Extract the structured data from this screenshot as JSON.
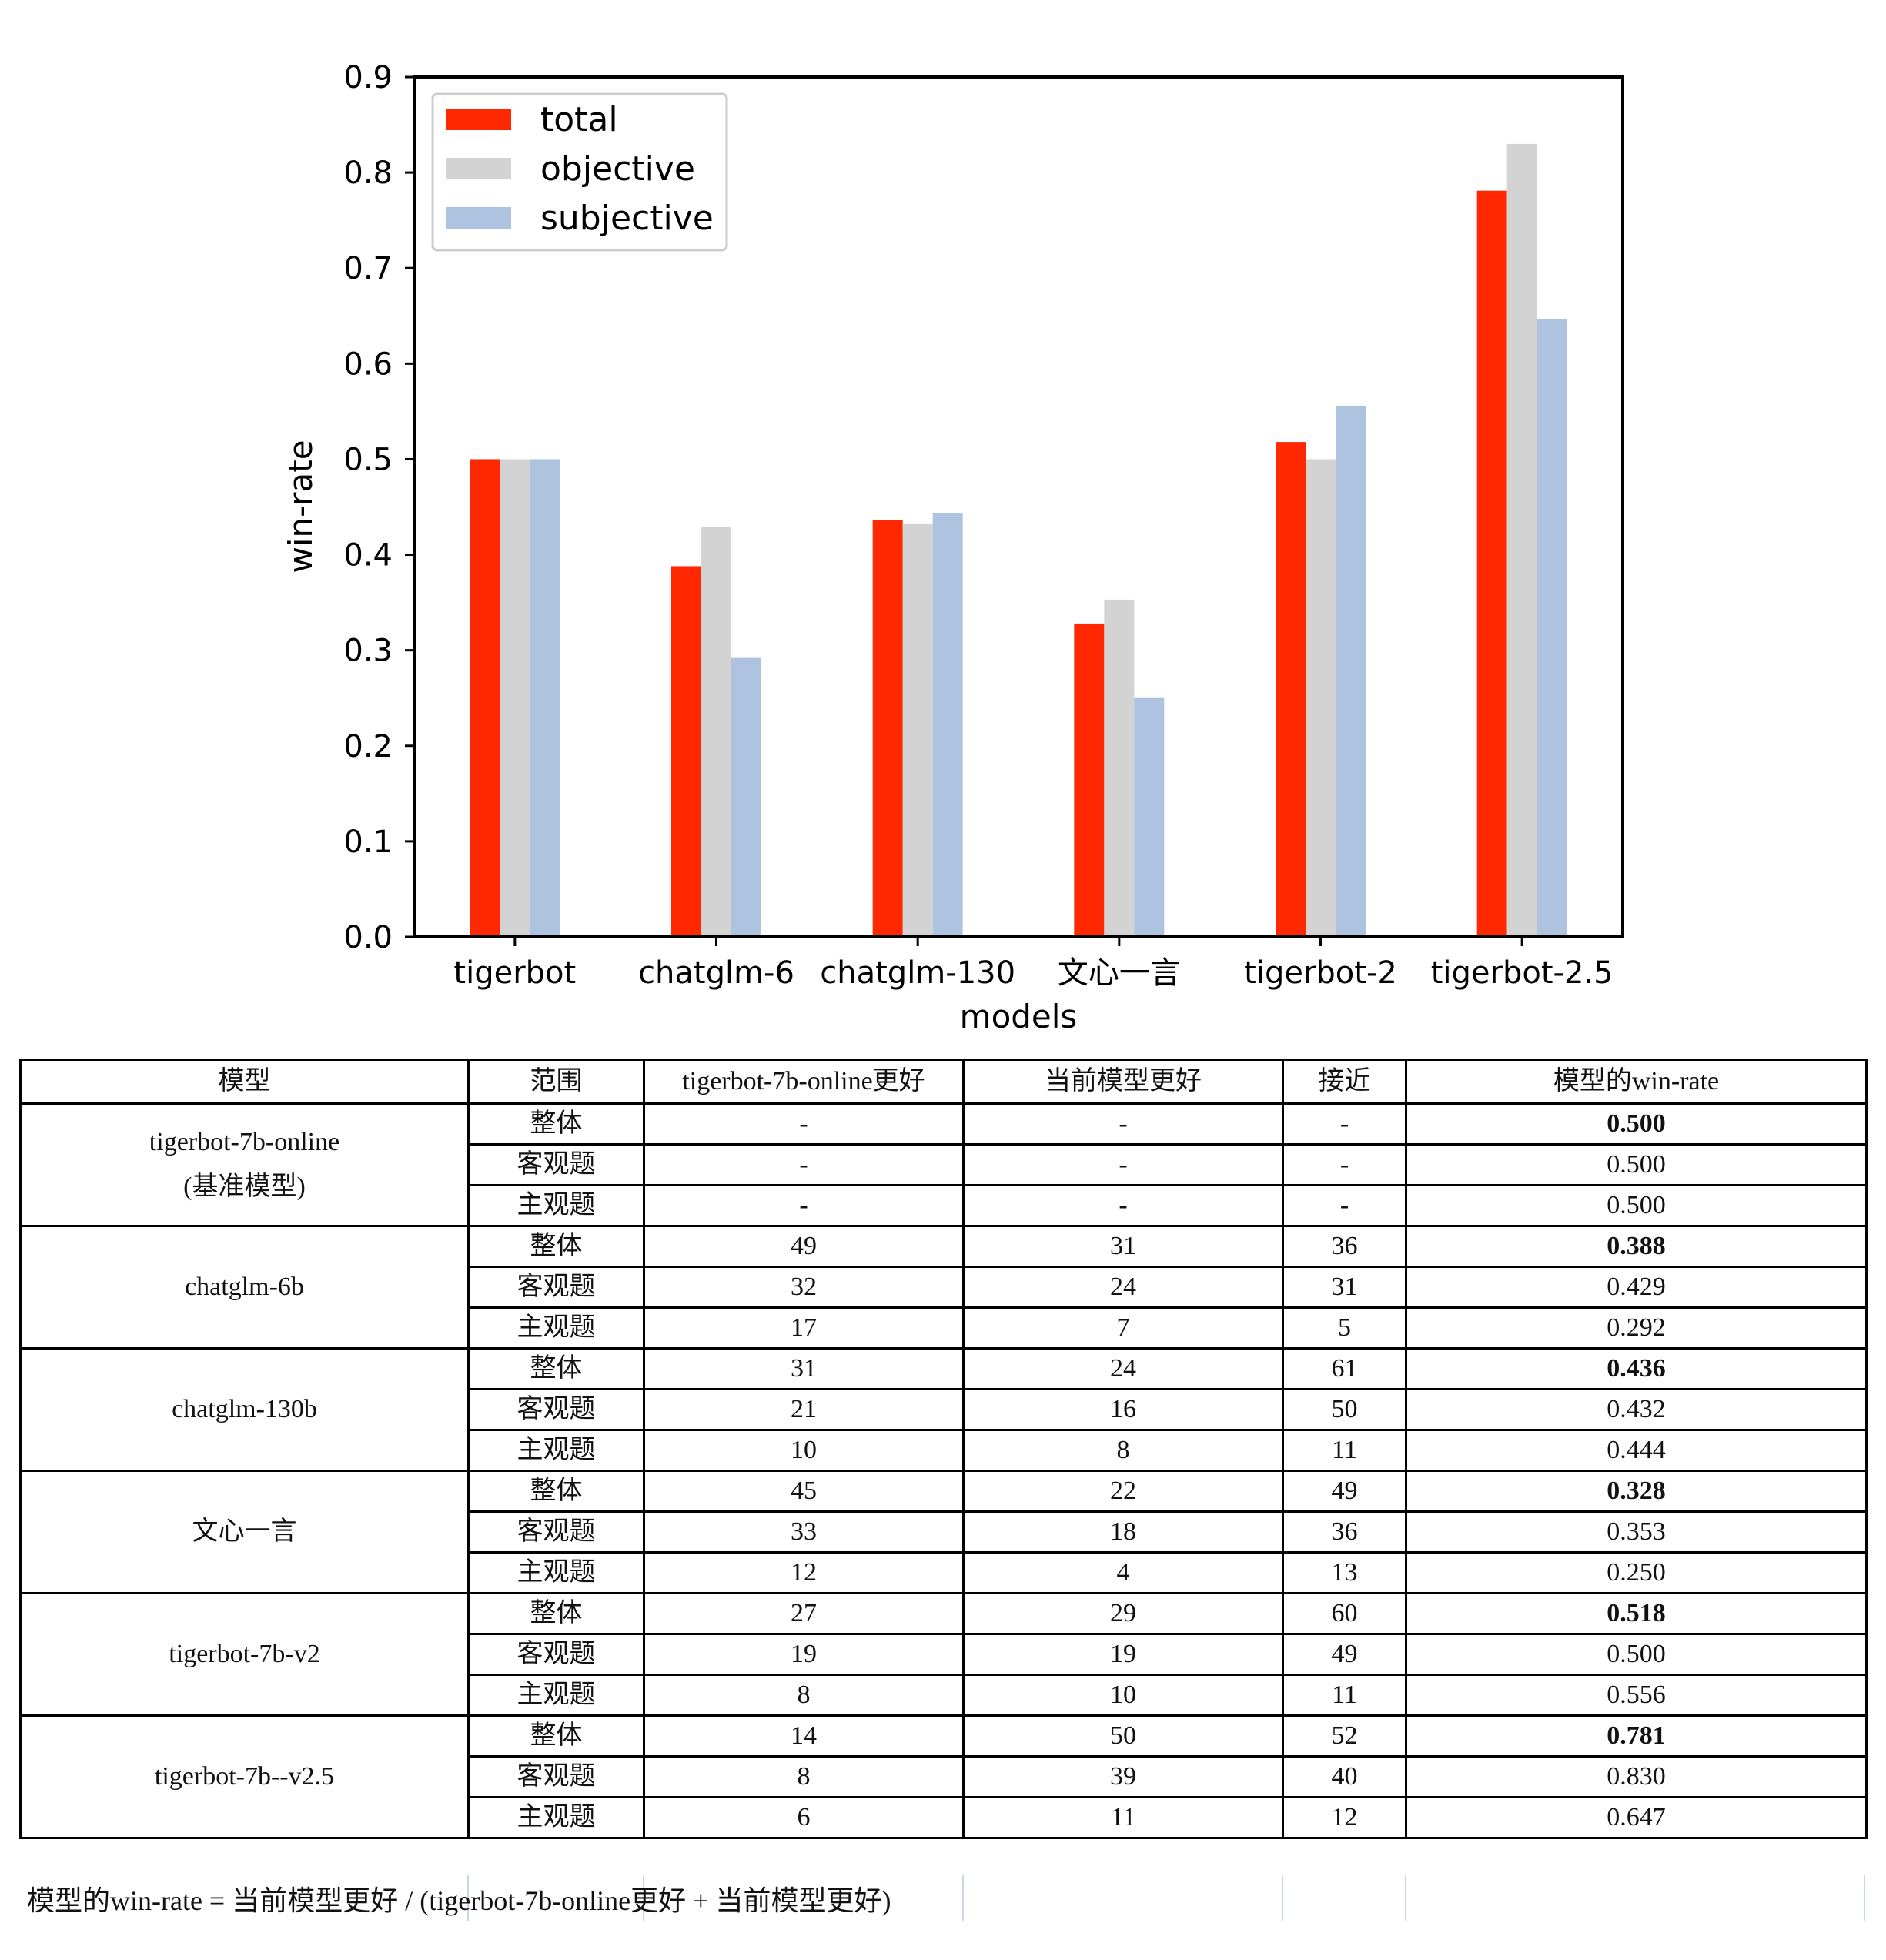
{
  "chart_data": {
    "type": "bar",
    "categories": [
      "tigerbot",
      "chatglm-6",
      "chatglm-130",
      "文心一言",
      "tigerbot-2",
      "tigerbot-2.5"
    ],
    "series": [
      {
        "name": "total",
        "color": "#ff2800",
        "values": [
          0.5,
          0.388,
          0.436,
          0.328,
          0.518,
          0.781
        ]
      },
      {
        "name": "objective",
        "color": "#d3d3d3",
        "values": [
          0.5,
          0.429,
          0.432,
          0.353,
          0.5,
          0.83
        ]
      },
      {
        "name": "subjective",
        "color": "#aec3e0",
        "values": [
          0.5,
          0.292,
          0.444,
          0.25,
          0.556,
          0.647
        ]
      }
    ],
    "title": "",
    "xlabel": "models",
    "ylabel": "win-rate",
    "ylim": [
      0,
      0.9
    ],
    "yticks": [
      "0.0",
      "0.1",
      "0.2",
      "0.3",
      "0.4",
      "0.5",
      "0.6",
      "0.7",
      "0.8",
      "0.9"
    ],
    "grid": false,
    "legend_position": "top-left"
  },
  "table": {
    "headers": [
      "模型",
      "范围",
      "tigerbot-7b-online更好",
      "当前模型更好",
      "接近",
      "模型的win-rate"
    ],
    "groups": [
      {
        "model": "tigerbot-7b-online",
        "model_note": "(基准模型)",
        "rows": [
          {
            "scope": "整体",
            "baseline_better": "-",
            "current_better": "-",
            "close": "-",
            "win_rate": "0.500"
          },
          {
            "scope": "客观题",
            "baseline_better": "-",
            "current_better": "-",
            "close": "-",
            "win_rate": "0.500"
          },
          {
            "scope": "主观题",
            "baseline_better": "-",
            "current_better": "-",
            "close": "-",
            "win_rate": "0.500"
          }
        ]
      },
      {
        "model": "chatglm-6b",
        "model_note": "",
        "rows": [
          {
            "scope": "整体",
            "baseline_better": "49",
            "current_better": "31",
            "close": "36",
            "win_rate": "0.388"
          },
          {
            "scope": "客观题",
            "baseline_better": "32",
            "current_better": "24",
            "close": "31",
            "win_rate": "0.429"
          },
          {
            "scope": "主观题",
            "baseline_better": "17",
            "current_better": "7",
            "close": "5",
            "win_rate": "0.292"
          }
        ]
      },
      {
        "model": "chatglm-130b",
        "model_note": "",
        "rows": [
          {
            "scope": "整体",
            "baseline_better": "31",
            "current_better": "24",
            "close": "61",
            "win_rate": "0.436"
          },
          {
            "scope": "客观题",
            "baseline_better": "21",
            "current_better": "16",
            "close": "50",
            "win_rate": "0.432"
          },
          {
            "scope": "主观题",
            "baseline_better": "10",
            "current_better": "8",
            "close": "11",
            "win_rate": "0.444"
          }
        ]
      },
      {
        "model": "文心一言",
        "model_note": "",
        "rows": [
          {
            "scope": "整体",
            "baseline_better": "45",
            "current_better": "22",
            "close": "49",
            "win_rate": "0.328"
          },
          {
            "scope": "客观题",
            "baseline_better": "33",
            "current_better": "18",
            "close": "36",
            "win_rate": "0.353"
          },
          {
            "scope": "主观题",
            "baseline_better": "12",
            "current_better": "4",
            "close": "13",
            "win_rate": "0.250"
          }
        ]
      },
      {
        "model": "tigerbot-7b-v2",
        "model_note": "",
        "rows": [
          {
            "scope": "整体",
            "baseline_better": "27",
            "current_better": "29",
            "close": "60",
            "win_rate": "0.518"
          },
          {
            "scope": "客观题",
            "baseline_better": "19",
            "current_better": "19",
            "close": "49",
            "win_rate": "0.500"
          },
          {
            "scope": "主观题",
            "baseline_better": "8",
            "current_better": "10",
            "close": "11",
            "win_rate": "0.556"
          }
        ]
      },
      {
        "model": "tigerbot-7b--v2.5",
        "model_note": "",
        "rows": [
          {
            "scope": "整体",
            "baseline_better": "14",
            "current_better": "50",
            "close": "52",
            "win_rate": "0.781"
          },
          {
            "scope": "客观题",
            "baseline_better": "8",
            "current_better": "39",
            "close": "40",
            "win_rate": "0.830"
          },
          {
            "scope": "主观题",
            "baseline_better": "6",
            "current_better": "11",
            "close": "12",
            "win_rate": "0.647"
          }
        ]
      }
    ],
    "formula": "模型的win-rate = 当前模型更好 / (tigerbot-7b-online更好 + 当前模型更好)"
  }
}
